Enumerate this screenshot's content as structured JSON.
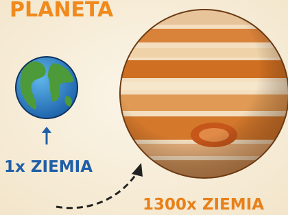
{
  "header": {
    "title": "PLANETA"
  },
  "earth": {
    "label": "1x ZIEMIA"
  },
  "jupiter": {
    "label": "1300x ZIEMIA"
  }
}
